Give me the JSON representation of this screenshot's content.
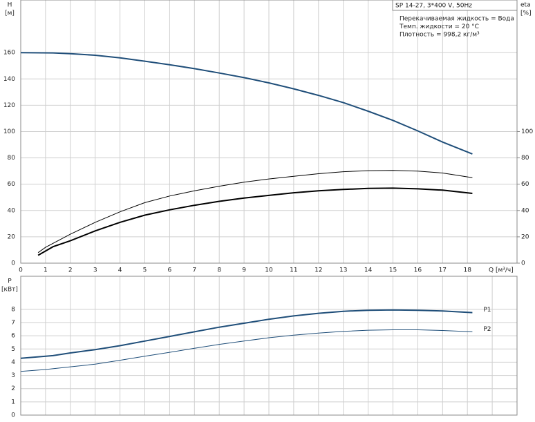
{
  "chart_data": [
    {
      "type": "line",
      "title": "SP 14-27, 3*400 V, 50Hz",
      "notes": [
        "Перекачиваемая жидкость = Вода",
        "Темп. жидкости = 20 °C",
        "Плотность = 998,2 кг/м³"
      ],
      "ylabel": "H",
      "yunit": "[м]",
      "y2label": "eta",
      "y2unit": "[%]",
      "xlabel": "Q [м³/ч]",
      "xlim": [
        0,
        20
      ],
      "xticks": [
        0,
        1,
        2,
        3,
        4,
        5,
        6,
        7,
        8,
        9,
        10,
        11,
        12,
        13,
        14,
        15,
        16,
        17,
        18
      ],
      "ylim": [
        0,
        200
      ],
      "yticks": [
        0,
        20,
        40,
        60,
        80,
        100,
        120,
        140,
        160
      ],
      "y2lim": [
        0,
        200
      ],
      "y2ticks": [
        0,
        20,
        40,
        60,
        80,
        100
      ],
      "grid": true,
      "series": [
        {
          "color": "#1f4e79",
          "width": 2,
          "x": [
            0,
            1.3,
            2,
            3,
            4,
            5,
            6,
            7,
            8,
            9,
            10,
            11,
            12,
            13,
            14,
            15,
            16,
            17,
            18.2
          ],
          "values": [
            160,
            159.8,
            159.2,
            158,
            156,
            153.5,
            150.8,
            147.8,
            144.5,
            141,
            137,
            132.5,
            127.5,
            122,
            115.5,
            108.5,
            100.5,
            92,
            83
          ]
        },
        {
          "color": "#000000",
          "width": 1,
          "axis": "y2",
          "x": [
            0.7,
            1,
            2,
            3,
            4,
            5,
            6,
            7,
            8,
            9,
            10,
            11,
            12,
            13,
            14,
            15,
            16,
            17,
            18.2
          ],
          "values": [
            8,
            12,
            22,
            31,
            39,
            46,
            51,
            55,
            58.5,
            61.5,
            64,
            66,
            68,
            69.5,
            70.3,
            70.5,
            70,
            68.5,
            65
          ]
        },
        {
          "color": "#000000",
          "width": 2,
          "axis": "y2",
          "x": [
            0.7,
            1.3,
            2,
            3,
            4,
            5,
            6,
            7,
            8,
            9,
            10,
            11,
            12,
            13,
            14,
            15,
            16,
            17,
            18.2
          ],
          "values": [
            6,
            12.5,
            17,
            24.5,
            31,
            36.5,
            40.5,
            44,
            47,
            49.5,
            51.5,
            53.5,
            55,
            56,
            56.8,
            57,
            56.5,
            55.5,
            53
          ]
        }
      ]
    },
    {
      "type": "line",
      "ylabel": "P",
      "yunit": "[кВт]",
      "xlim": [
        0,
        20
      ],
      "xticks": [
        0,
        1,
        2,
        3,
        4,
        5,
        6,
        7,
        8,
        9,
        10,
        11,
        12,
        13,
        14,
        15,
        16,
        17,
        18,
        19
      ],
      "show_xtick_labels": false,
      "ylim": [
        0,
        10.5
      ],
      "yticks": [
        0,
        1,
        2,
        3,
        4,
        5,
        6,
        7,
        8
      ],
      "grid": true,
      "series": [
        {
          "name": "P1",
          "color": "#1f4e79",
          "width": 2,
          "x": [
            0,
            1.3,
            2,
            3,
            4,
            5,
            6,
            7,
            8,
            9,
            10,
            11,
            12,
            13,
            14,
            15,
            16,
            17,
            18.2
          ],
          "values": [
            4.3,
            4.5,
            4.7,
            4.95,
            5.25,
            5.6,
            5.95,
            6.3,
            6.65,
            6.95,
            7.25,
            7.5,
            7.7,
            7.85,
            7.93,
            7.95,
            7.93,
            7.87,
            7.75
          ]
        },
        {
          "name": "P2",
          "color": "#1f4e79",
          "width": 1,
          "x": [
            0,
            1,
            2,
            3,
            4,
            5,
            6,
            7,
            8,
            9,
            10,
            11,
            12,
            13,
            14,
            15,
            16,
            17,
            18.2
          ],
          "values": [
            3.3,
            3.45,
            3.65,
            3.85,
            4.15,
            4.45,
            4.75,
            5.05,
            5.35,
            5.6,
            5.85,
            6.05,
            6.2,
            6.33,
            6.42,
            6.45,
            6.45,
            6.4,
            6.3
          ]
        }
      ]
    }
  ]
}
